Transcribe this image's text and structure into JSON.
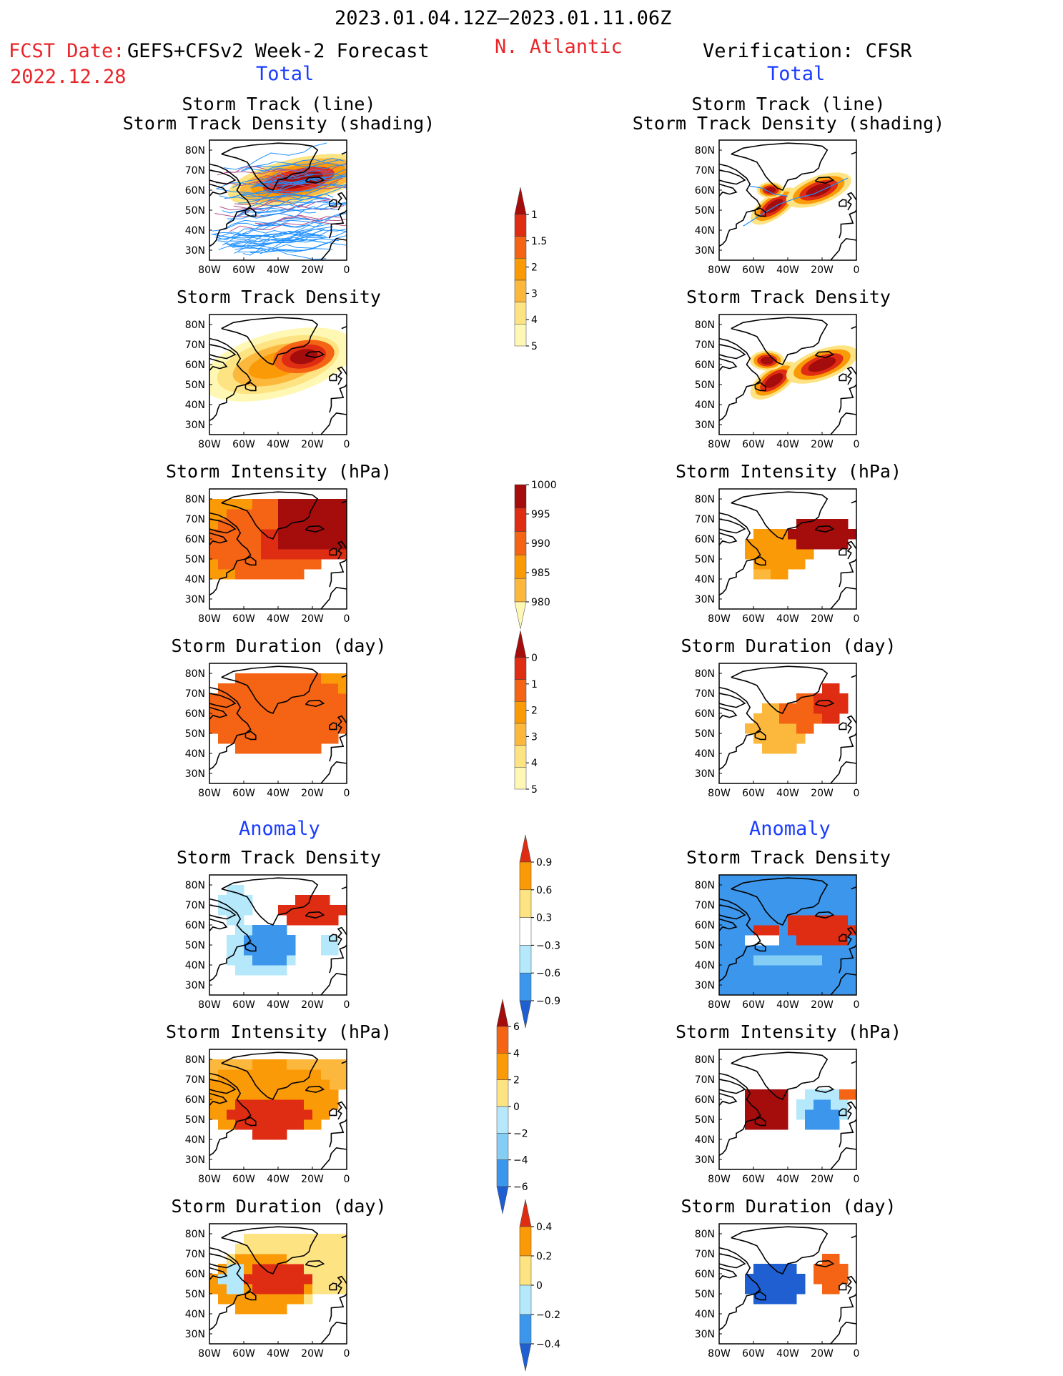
{
  "header": {
    "title": "2023.01.04.12Z—2023.01.11.06Z",
    "fcst_label": "FCST Date:",
    "fcst_model": "GEFS+CFSv2 Week-2 Forecast",
    "fcst_date": "2022.12.28",
    "region": "N. Atlantic",
    "verification": "Verification: CFSR",
    "total_left": "Total",
    "total_right": "Total",
    "anomaly_left": "Anomaly",
    "anomaly_right": "Anomaly"
  },
  "axes": {
    "lat_labels": [
      "80N",
      "70N",
      "60N",
      "50N",
      "40N",
      "30N"
    ],
    "lon_labels": [
      "80W",
      "60W",
      "40W",
      "20W",
      "0"
    ]
  },
  "panels": {
    "track_line": "Storm Track (line)",
    "track_density_shading": "Storm Track Density (shading)",
    "track_density": "Storm Track Density",
    "intensity": "Storm Intensity (hPa)",
    "duration": "Storm Duration (day)"
  },
  "colorbars": {
    "density_total": [
      "1",
      "1.5",
      "2",
      "3",
      "4",
      "5"
    ],
    "intensity_total": [
      "1000",
      "995",
      "990",
      "985",
      "980"
    ],
    "duration_total": [
      "0",
      "1",
      "2",
      "3",
      "4",
      "5"
    ],
    "density_anom": [
      "0.9",
      "0.6",
      "0.3",
      "−0.3",
      "−0.6",
      "−0.9"
    ],
    "intensity_anom": [
      "6",
      "4",
      "2",
      "0",
      "−2",
      "−4",
      "−6"
    ],
    "duration_anom": [
      "0.4",
      "0.2",
      "0",
      "−0.2",
      "−0.4"
    ]
  },
  "colors": {
    "warm": [
      "#fff8b4",
      "#fde382",
      "#fcb83c",
      "#fb9a07",
      "#f56414",
      "#df2d14",
      "#a50c0c"
    ],
    "cool": [
      "#ffffff",
      "#b4e8fa",
      "#84cdf5",
      "#3c96eb",
      "#1f5fd2"
    ],
    "track_line": "#1e90ff"
  }
}
